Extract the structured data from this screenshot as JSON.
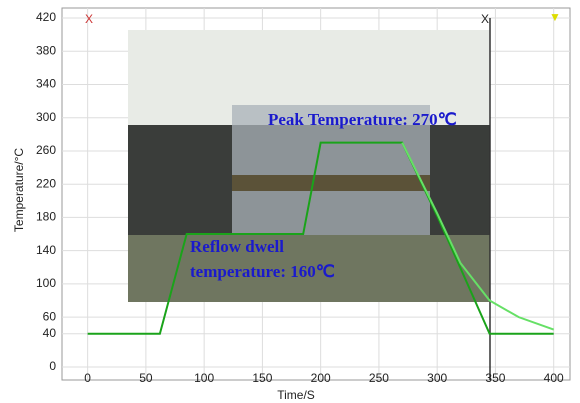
{
  "chart_data": {
    "type": "line",
    "annotations": [
      "Peak Temperature: 270℃",
      "Reflow dwell",
      "temperature: 160℃"
    ],
    "x_label": "Time/S",
    "y_label": "Temperature/°C",
    "x": [
      0,
      62,
      85,
      185,
      200,
      270,
      300,
      320,
      345,
      370,
      400
    ],
    "series": [
      {
        "color": "#1aa31a",
        "values": [
          40,
          40,
          160,
          160,
          270,
          270,
          182,
          119,
          40,
          40,
          40
        ]
      },
      {
        "color": "#66e066",
        "values": [
          null,
          null,
          null,
          null,
          null,
          270,
          185,
          125,
          80,
          60,
          45
        ]
      }
    ],
    "xlim": [
      -22,
      414
    ],
    "xticks": [
      0,
      50,
      100,
      150,
      200,
      250,
      300,
      350,
      400
    ],
    "ylim": [
      0,
      420
    ],
    "yticks": [
      0,
      40,
      60,
      100,
      140,
      180,
      220,
      260,
      300,
      340,
      380,
      420
    ],
    "grid": true
  }
}
